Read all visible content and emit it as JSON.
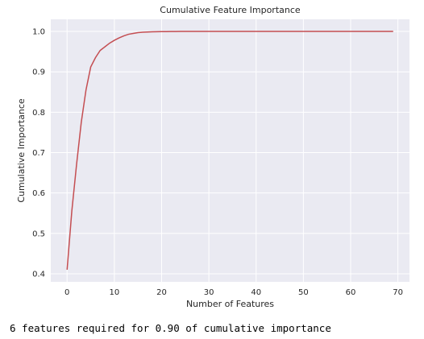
{
  "chart_data": {
    "type": "line",
    "title": "Cumulative Feature Importance",
    "xlabel": "Number of Features",
    "ylabel": "Cumulative Importance",
    "xlim": [
      -3.45,
      72.45
    ],
    "ylim": [
      0.38,
      1.03
    ],
    "xticks": [
      0,
      10,
      20,
      30,
      40,
      50,
      60,
      70
    ],
    "yticks": [
      0.4,
      0.5,
      0.6,
      0.7,
      0.8,
      0.9,
      1.0
    ],
    "xtick_labels": [
      "0",
      "10",
      "20",
      "30",
      "40",
      "50",
      "60",
      "70"
    ],
    "ytick_labels": [
      "0.4",
      "0.5",
      "0.6",
      "0.7",
      "0.8",
      "0.9",
      "1.0"
    ],
    "grid": true,
    "legend": "none",
    "background_color": "#eaeaf2",
    "line_color": "#c44e52",
    "series": [
      {
        "x": [
          0,
          1,
          2,
          3,
          4,
          5,
          6,
          7,
          8,
          9,
          10,
          11,
          12,
          13,
          14,
          15,
          16,
          17,
          18,
          19,
          20,
          21,
          22,
          23,
          24,
          25,
          26,
          27,
          28,
          29,
          30,
          31,
          32,
          33,
          34,
          35,
          36,
          37,
          38,
          39,
          40,
          41,
          42,
          43,
          44,
          45,
          46,
          47,
          48,
          49,
          50,
          51,
          52,
          53,
          54,
          55,
          56,
          57,
          58,
          59,
          60,
          61,
          62,
          63,
          64,
          65,
          66,
          67,
          68,
          69
        ],
        "y": [
          0.41,
          0.555,
          0.67,
          0.775,
          0.855,
          0.912,
          0.935,
          0.953,
          0.962,
          0.971,
          0.978,
          0.984,
          0.989,
          0.993,
          0.995,
          0.997,
          0.998,
          0.9985,
          0.999,
          0.9993,
          0.9995,
          0.9997,
          0.9998,
          0.9999,
          1.0,
          1.0,
          1.0,
          1.0,
          1.0,
          1.0,
          1.0,
          1.0,
          1.0,
          1.0,
          1.0,
          1.0,
          1.0,
          1.0,
          1.0,
          1.0,
          1.0,
          1.0,
          1.0,
          1.0,
          1.0,
          1.0,
          1.0,
          1.0,
          1.0,
          1.0,
          1.0,
          1.0,
          1.0,
          1.0,
          1.0,
          1.0,
          1.0,
          1.0,
          1.0,
          1.0,
          1.0,
          1.0,
          1.0,
          1.0,
          1.0,
          1.0,
          1.0,
          1.0,
          1.0,
          1.0
        ]
      }
    ]
  },
  "output": {
    "text": "6 features required for 0.90 of cumulative importance"
  }
}
